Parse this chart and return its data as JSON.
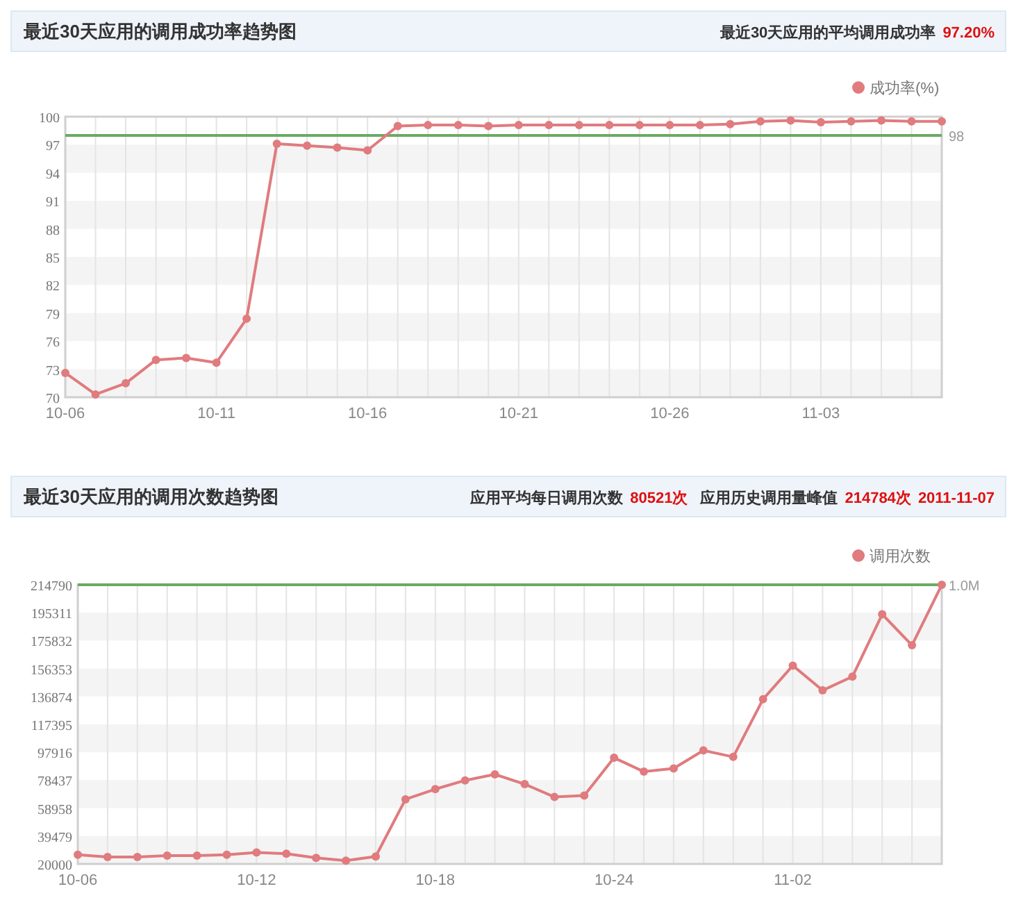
{
  "chart_data": [
    {
      "type": "line",
      "title": "最近30天应用的调用成功率趋势图",
      "annotations": [
        "最近30天应用的平均调用成功率",
        "97.20%"
      ],
      "categories": [
        "10-06",
        null,
        null,
        null,
        null,
        "10-11",
        null,
        null,
        null,
        null,
        "10-16",
        null,
        null,
        null,
        null,
        "10-21",
        null,
        null,
        null,
        null,
        "10-26",
        null,
        null,
        null,
        null,
        "11-03",
        null,
        null,
        null,
        null
      ],
      "series": [
        {
          "name": "成功率(%)",
          "color": "#e07b7e",
          "values": [
            72.6,
            70.3,
            71.5,
            74.0,
            74.2,
            73.7,
            78.4,
            97.1,
            96.9,
            96.7,
            96.4,
            99.0,
            99.1,
            99.1,
            99.0,
            99.1,
            99.1,
            99.1,
            99.1,
            99.1,
            99.1,
            99.1,
            99.2,
            99.5,
            99.6,
            99.4,
            99.5,
            99.6,
            99.5,
            99.5
          ]
        }
      ],
      "ylim": [
        70,
        100
      ],
      "yticks": [
        70,
        73,
        76,
        79,
        82,
        85,
        88,
        91,
        94,
        97,
        100
      ],
      "ref_lines": [
        {
          "axis": "y",
          "value": 98,
          "label": "98",
          "color": "#6aaa64"
        }
      ],
      "grid": true,
      "legend": "top right",
      "marker": "circle",
      "line_style": "solid"
    },
    {
      "type": "line",
      "title": "最近30天应用的调用次数趋势图",
      "annotations": [
        "应用平均每日调用次数",
        "80521次",
        "应用历史调用量峰值",
        "214784次",
        "2011-11-07"
      ],
      "categories": [
        "10-06",
        null,
        null,
        null,
        null,
        null,
        "10-12",
        null,
        null,
        null,
        null,
        null,
        "10-18",
        null,
        null,
        null,
        null,
        null,
        "10-24",
        null,
        null,
        null,
        null,
        null,
        "11-02",
        null,
        null,
        null,
        null,
        null
      ],
      "series": [
        {
          "name": "调用次数",
          "color": "#e07b7e",
          "values": [
            26400,
            24800,
            24800,
            25800,
            25800,
            26400,
            28000,
            27100,
            24200,
            22300,
            25200,
            65100,
            72200,
            78300,
            82500,
            75700,
            66700,
            67700,
            94100,
            84400,
            86600,
            99200,
            94700,
            134900,
            158400,
            141100,
            150700,
            194200,
            172600,
            214784
          ]
        }
      ],
      "ylim": [
        20000,
        214790
      ],
      "yticks": [
        20000,
        39479,
        58958,
        78437,
        97916,
        117395,
        136874,
        156353,
        175832,
        195311,
        214790
      ],
      "ref_lines": [
        {
          "axis": "y",
          "value": 214790,
          "label": "1.0M",
          "color": "#6aaa64"
        }
      ],
      "grid": true,
      "legend": "top right",
      "marker": "circle",
      "line_style": "solid"
    }
  ]
}
